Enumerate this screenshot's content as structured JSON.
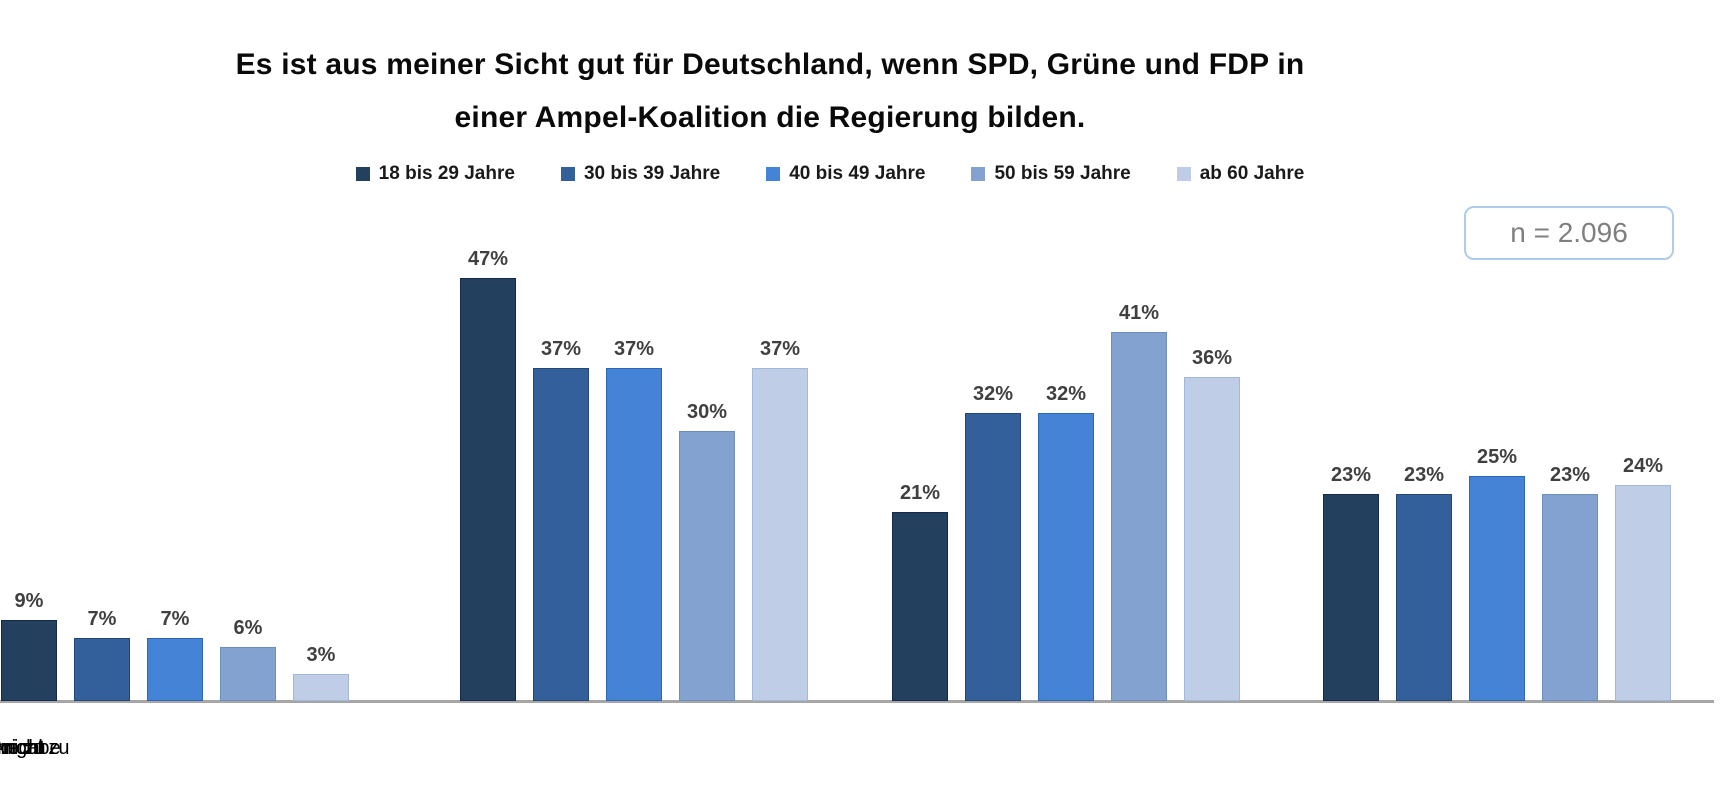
{
  "title": {
    "line1": "Es ist aus meiner Sicht gut für Deutschland, wenn SPD, Grüne und FDP in",
    "line2": "einer Ampel-Koalition die Regierung bilden."
  },
  "sample_size": {
    "label": "n = 2.096"
  },
  "colors": {
    "axis_line": "#a6a6a6",
    "n_box_border": "#aecbea",
    "n_box_text": "#7f7f7f",
    "value_label": "#404040"
  },
  "chart_data": {
    "type": "bar",
    "title": "Es ist aus meiner Sicht gut für Deutschland, wenn SPD, Grüne und FDP in einer Ampel-Koalition die Regierung bilden.",
    "categories": [
      "stimme zu",
      "stimme nicht zu",
      "weiß nicht",
      "keine Angabe"
    ],
    "series": [
      {
        "name": "18 bis 29 Jahre",
        "color": "#24405f",
        "border_color": "#16294a",
        "values": [
          47,
          21,
          23,
          9
        ]
      },
      {
        "name": "30 bis 39 Jahre",
        "color": "#33609b",
        "border_color": "#24477a",
        "values": [
          37,
          32,
          23,
          7
        ]
      },
      {
        "name": "40 bis 49 Jahre",
        "color": "#4583d7",
        "border_color": "#2f66b4",
        "values": [
          37,
          32,
          25,
          7
        ]
      },
      {
        "name": "50 bis 59 Jahre",
        "color": "#84a2cf",
        "border_color": "#6d8fc0",
        "values": [
          30,
          41,
          23,
          6
        ]
      },
      {
        "name": "ab 60 Jahre",
        "color": "#bfcee6",
        "border_color": "#a3b8d9",
        "values": [
          37,
          36,
          24,
          3
        ]
      }
    ],
    "value_suffix": "%",
    "ylim": [
      0,
      50
    ],
    "grid": false,
    "legend_position": "top",
    "sample_size": "n = 2.096",
    "xlabel": "",
    "ylabel": ""
  }
}
